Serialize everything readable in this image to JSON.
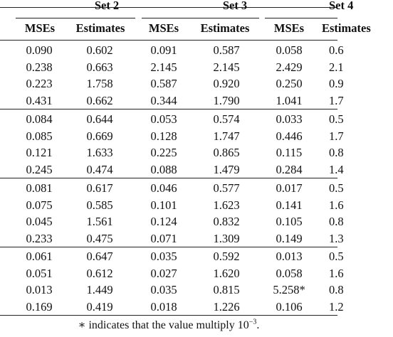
{
  "header": {
    "set_labels": [
      "Set 2",
      "Set 3",
      "Set 4"
    ],
    "columns": [
      "",
      "MSEs",
      "Estimates",
      "MSEs",
      "Estimates",
      "MSEs",
      "Estimates"
    ]
  },
  "groups": [
    {
      "rows": [
        [
          "",
          "0.090",
          "0.602",
          "0.091",
          "0.587",
          "0.058",
          "0.6"
        ],
        [
          "",
          "0.238",
          "0.663",
          "2.145",
          "2.145",
          "2.429",
          "2.1"
        ],
        [
          "",
          "0.223",
          "1.758",
          "0.587",
          "0.920",
          "0.250",
          "0.9"
        ],
        [
          "",
          "0.431",
          "0.662",
          "0.344",
          "1.790",
          "1.041",
          "1.7"
        ]
      ]
    },
    {
      "rows": [
        [
          "",
          "0.084",
          "0.644",
          "0.053",
          "0.574",
          "0.033",
          "0.5"
        ],
        [
          "",
          "0.085",
          "0.669",
          "0.128",
          "1.747",
          "0.446",
          "1.7"
        ],
        [
          "",
          "0.121",
          "1.633",
          "0.225",
          "0.865",
          "0.115",
          "0.8"
        ],
        [
          "",
          "0.245",
          "0.474",
          "0.088",
          "1.479",
          "0.284",
          "1.4"
        ]
      ]
    },
    {
      "rows": [
        [
          "",
          "0.081",
          "0.617",
          "0.046",
          "0.577",
          "0.017",
          "0.5"
        ],
        [
          "",
          "0.075",
          "0.585",
          "0.101",
          "1.623",
          "0.141",
          "1.6"
        ],
        [
          "",
          "0.045",
          "1.561",
          "0.124",
          "0.832",
          "0.105",
          "0.8"
        ],
        [
          "",
          "0.233",
          "0.475",
          "0.071",
          "1.309",
          "0.149",
          "1.3"
        ]
      ]
    },
    {
      "rows": [
        [
          "",
          "0.061",
          "0.647",
          "0.035",
          "0.592",
          "0.013",
          "0.5"
        ],
        [
          "",
          "0.051",
          "0.612",
          "0.027",
          "1.620",
          "0.058",
          "1.6"
        ],
        [
          "",
          "0.013",
          "1.449",
          "0.035",
          "0.815",
          "5.258*",
          "0.8"
        ],
        [
          "",
          "0.169",
          "0.419",
          "0.018",
          "1.226",
          "0.106",
          "1.2"
        ]
      ]
    }
  ],
  "footnote": {
    "text": "∗ indicates that the value multiply 10",
    "exponent": "−3",
    "end": "."
  }
}
